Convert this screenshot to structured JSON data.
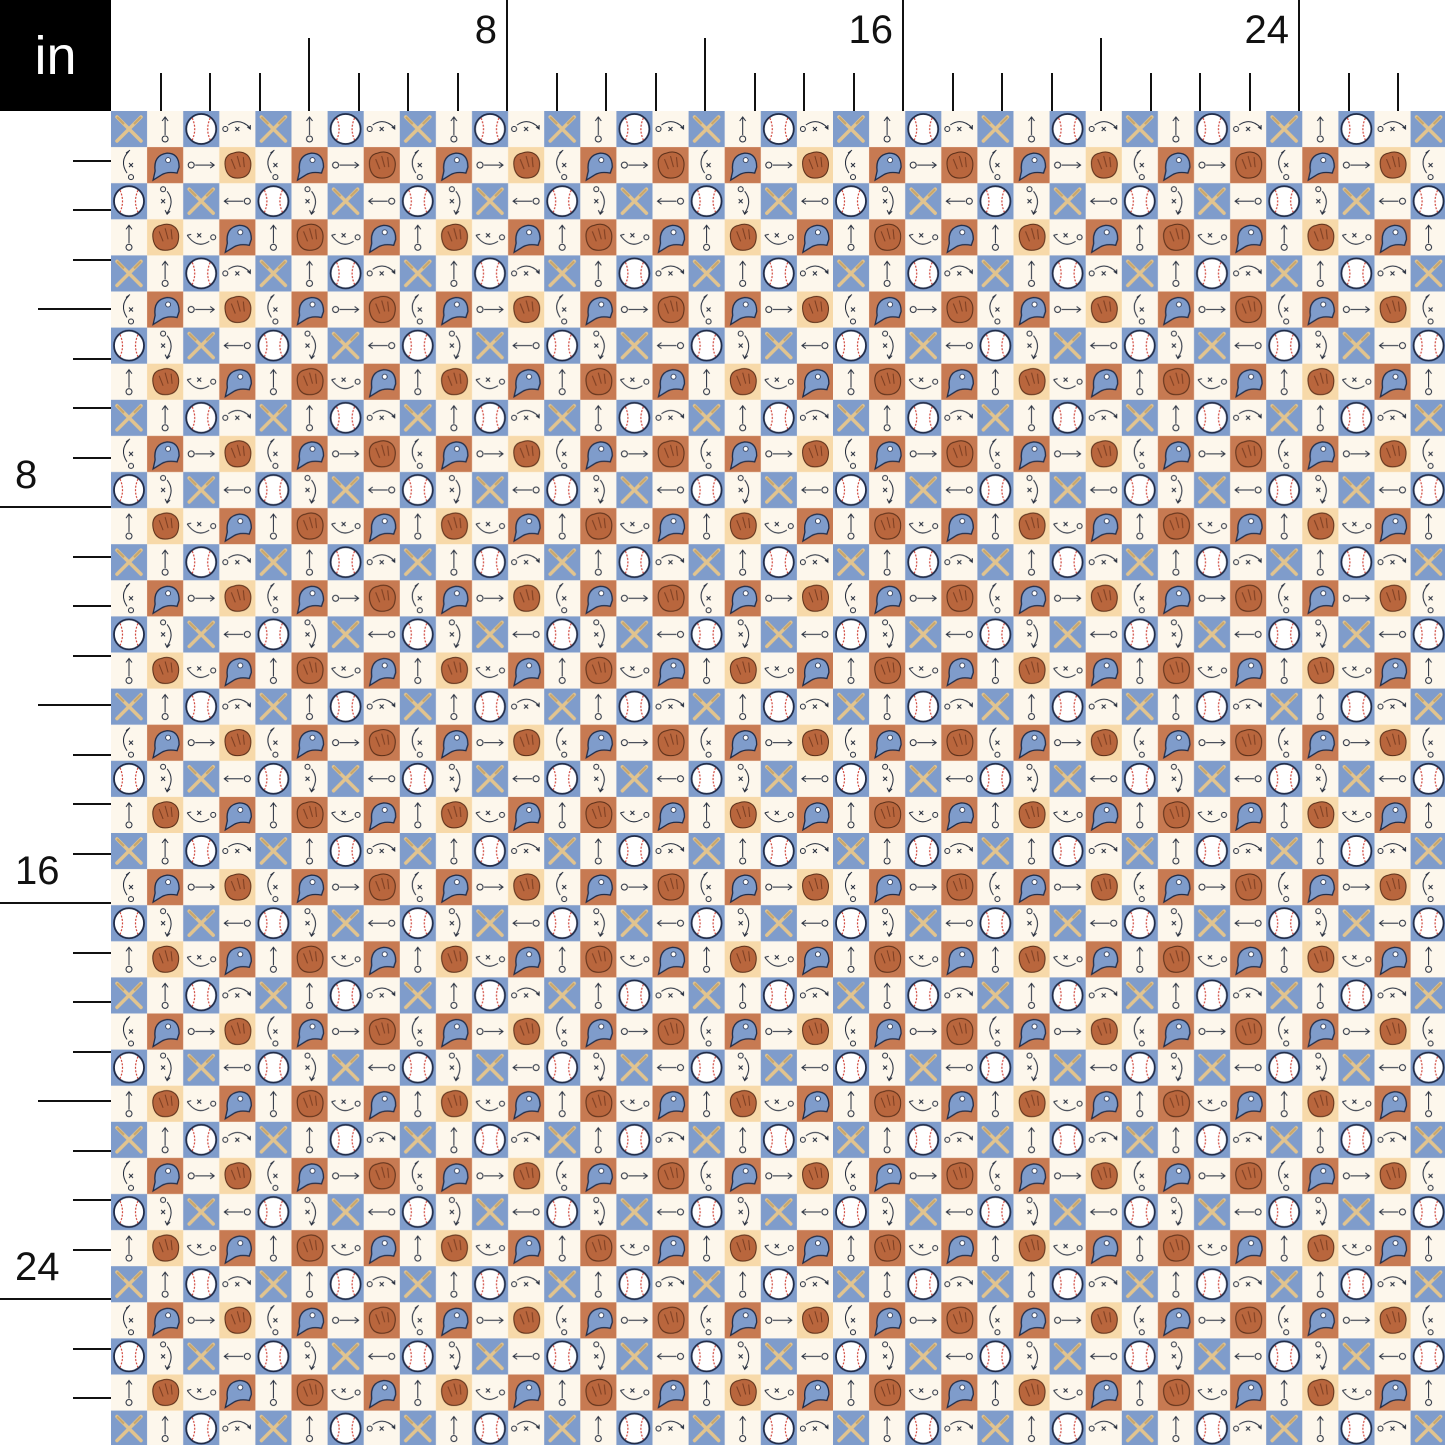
{
  "ruler": {
    "unit": "in",
    "major_labels": [
      "8",
      "16",
      "24"
    ]
  },
  "fabric": {
    "motifs": [
      "crossed-bats",
      "baseball",
      "baseball-cap",
      "baseball-glove",
      "play-diagram-arrows"
    ],
    "colors": {
      "blue": "#7f9ccb",
      "cream": "#fdf7ec",
      "rust": "#c77a52",
      "peach": "#f7d9a9",
      "glove": "#b9663d",
      "bat": "#e2c48e",
      "stitch": "#d0443a",
      "ink": "#222a3a"
    }
  }
}
